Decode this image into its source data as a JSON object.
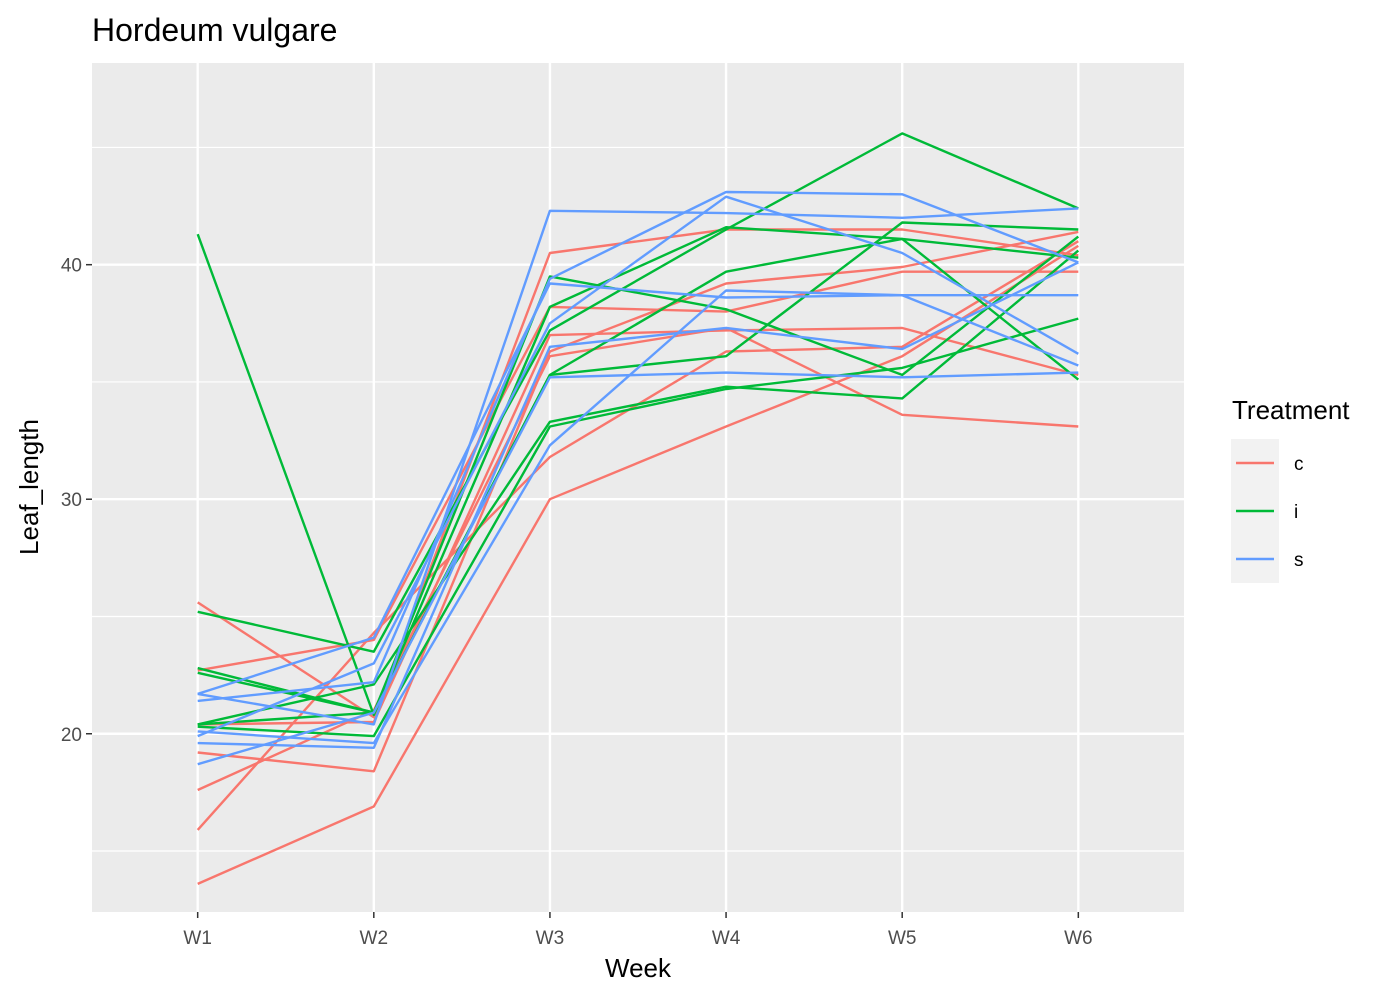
{
  "chart_data": {
    "type": "line",
    "title": "Hordeum vulgare",
    "xlabel": "Week",
    "ylabel": "Leaf_length",
    "categories": [
      "W1",
      "W2",
      "W3",
      "W4",
      "W5",
      "W6"
    ],
    "ylim": [
      12.4,
      48.6
    ],
    "yticks": [
      20,
      30,
      40
    ],
    "grid": true,
    "legend": {
      "title": "Treatment",
      "placement": "right",
      "entries": [
        {
          "label": "c",
          "color": "#F8766D"
        },
        {
          "label": "i",
          "color": "#00BA38"
        },
        {
          "label": "s",
          "color": "#619CFF"
        }
      ]
    },
    "series": [
      {
        "group": "c",
        "values": [
          25.6,
          20.7,
          40.5,
          41.5,
          41.5,
          40.4
        ]
      },
      {
        "group": "c",
        "values": [
          22.7,
          24.0,
          38.2,
          38.0,
          39.7,
          39.7
        ]
      },
      {
        "group": "c",
        "values": [
          20.4,
          20.5,
          37.0,
          37.2,
          37.3,
          35.3
        ]
      },
      {
        "group": "c",
        "values": [
          19.2,
          18.4,
          36.3,
          39.2,
          39.9,
          41.4
        ]
      },
      {
        "group": "c",
        "values": [
          17.6,
          21.0,
          36.1,
          37.3,
          33.6,
          33.1
        ]
      },
      {
        "group": "c",
        "values": [
          15.9,
          24.3,
          31.8,
          36.3,
          36.5,
          41.0
        ]
      },
      {
        "group": "c",
        "values": [
          13.6,
          16.9,
          30.0,
          33.1,
          36.1,
          40.8
        ]
      },
      {
        "group": "i",
        "values": [
          41.3,
          20.8,
          38.2,
          41.6,
          41.1,
          40.3
        ]
      },
      {
        "group": "i",
        "values": [
          25.2,
          23.5,
          37.2,
          41.5,
          45.6,
          42.4
        ]
      },
      {
        "group": "i",
        "values": [
          22.8,
          20.9,
          39.5,
          38.1,
          35.3,
          41.2
        ]
      },
      {
        "group": "i",
        "values": [
          22.6,
          20.9,
          35.3,
          36.1,
          41.8,
          41.5
        ]
      },
      {
        "group": "i",
        "values": [
          20.4,
          22.1,
          33.3,
          34.8,
          34.3,
          40.6
        ]
      },
      {
        "group": "i",
        "values": [
          20.3,
          19.9,
          33.1,
          34.7,
          35.6,
          37.7
        ]
      },
      {
        "group": "i",
        "values": [
          20.4,
          20.9,
          35.3,
          39.7,
          41.1,
          35.1
        ]
      },
      {
        "group": "s",
        "values": [
          21.7,
          20.4,
          42.3,
          42.2,
          42.0,
          42.4
        ]
      },
      {
        "group": "s",
        "values": [
          21.4,
          22.2,
          39.4,
          43.1,
          43.0,
          40.1
        ]
      },
      {
        "group": "s",
        "values": [
          21.7,
          24.1,
          39.2,
          38.6,
          38.7,
          38.7
        ]
      },
      {
        "group": "s",
        "values": [
          19.9,
          23.0,
          37.5,
          42.9,
          40.5,
          36.2
        ]
      },
      {
        "group": "s",
        "values": [
          19.6,
          19.4,
          36.5,
          37.3,
          36.4,
          40.1
        ]
      },
      {
        "group": "s",
        "values": [
          18.7,
          20.9,
          35.2,
          35.4,
          35.2,
          35.4
        ]
      },
      {
        "group": "s",
        "values": [
          20.1,
          19.6,
          32.3,
          38.9,
          38.7,
          35.7
        ]
      }
    ]
  }
}
